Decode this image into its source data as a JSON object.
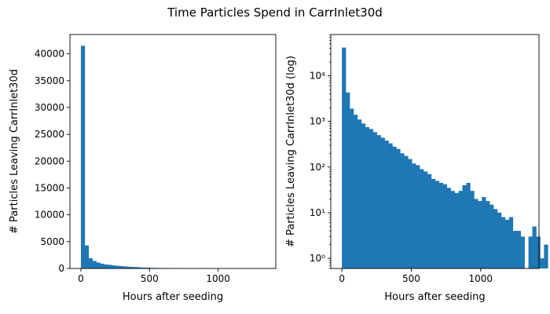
{
  "suptitle": "Time Particles Spend in CarrInlet30d",
  "colors": {
    "bar": "#1f77b4",
    "axis": "#000000",
    "background": "#ffffff"
  },
  "chart_data": [
    {
      "type": "bar",
      "scale": "linear",
      "xlabel": "Hours after seeding",
      "ylabel": "# Particles Leaving CarrInlet30d",
      "xlim": [
        -80,
        1420
      ],
      "ylim": [
        0,
        43600
      ],
      "xticks": [
        0,
        500,
        1000
      ],
      "xtick_labels": [
        "0",
        "500",
        "1000"
      ],
      "yticks": [
        0,
        5000,
        10000,
        15000,
        20000,
        25000,
        30000,
        35000,
        40000
      ],
      "ytick_labels": [
        "0",
        "5000",
        "10000",
        "15000",
        "20000",
        "25000",
        "30000",
        "35000",
        "40000"
      ],
      "bin_width": 28,
      "bin_start": 0,
      "values": [
        41500,
        4300,
        1900,
        1400,
        1100,
        900,
        750,
        680,
        580,
        500,
        440,
        380,
        330,
        280,
        250,
        200,
        175,
        150,
        120,
        110,
        90,
        80,
        70,
        55,
        50,
        45,
        42,
        35,
        30,
        27,
        30,
        40,
        45,
        30,
        20,
        18,
        22,
        18,
        15,
        12,
        10,
        8,
        7,
        8,
        4,
        4,
        3,
        0,
        3,
        5,
        3,
        1,
        2
      ]
    },
    {
      "type": "bar",
      "scale": "log",
      "xlabel": "Hours after seeding",
      "ylabel": "# Particles Leaving CarrInlet30d (log)",
      "xlim": [
        -80,
        1420
      ],
      "ylim": [
        0.6,
        80000
      ],
      "xticks": [
        0,
        500,
        1000
      ],
      "xtick_labels": [
        "0",
        "500",
        "1000"
      ],
      "yticks": [
        1,
        10,
        100,
        1000,
        10000
      ],
      "ytick_labels": [
        "10⁰",
        "10¹",
        "10²",
        "10³",
        "10⁴"
      ],
      "bin_width": 28,
      "bin_start": 0,
      "values": [
        41500,
        4300,
        1900,
        1400,
        1100,
        900,
        750,
        680,
        580,
        500,
        440,
        380,
        330,
        280,
        250,
        200,
        175,
        150,
        120,
        110,
        90,
        80,
        70,
        55,
        50,
        45,
        42,
        35,
        30,
        27,
        30,
        40,
        45,
        30,
        20,
        18,
        22,
        18,
        15,
        12,
        10,
        8,
        7,
        8,
        4,
        4,
        3,
        0,
        3,
        5,
        3,
        1,
        2
      ]
    }
  ]
}
